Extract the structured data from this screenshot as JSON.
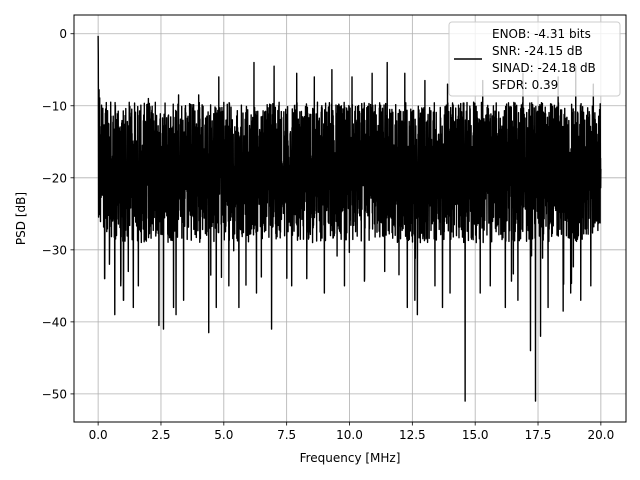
{
  "chart_data": {
    "type": "line",
    "title": "",
    "xlabel": "Frequency [MHz]",
    "ylabel": "PSD [dB]",
    "xlim": [
      -0.96,
      21.0
    ],
    "ylim": [
      -53.9,
      2.6
    ],
    "x_ticks": [
      0.0,
      2.5,
      5.0,
      7.5,
      10.0,
      12.5,
      15.0,
      17.5,
      20.0
    ],
    "x_tick_labels": [
      "0.0",
      "2.5",
      "5.0",
      "7.5",
      "10.0",
      "12.5",
      "15.0",
      "17.5",
      "20.0"
    ],
    "y_ticks": [
      0,
      -10,
      -20,
      -30,
      -40,
      -50
    ],
    "y_tick_labels": [
      "0",
      "−10",
      "−20",
      "−30",
      "−40",
      "−50"
    ],
    "grid": true,
    "legend": {
      "placement": "top-right",
      "entries": [
        "ENOB: -4.31 bits",
        "SNR: -24.15 dB",
        "SINAD: -24.18 dB",
        "SFDR: 0.39"
      ]
    },
    "series": [
      {
        "color": "#000000",
        "x_start": 0.0,
        "x_end": 20.0,
        "dc_peak": {
          "x": 0.0,
          "y": -0.3
        },
        "noise_band": {
          "upper_envelope": -9.5,
          "lower_typical": -27.0,
          "median": -18.0
        },
        "upper_spikes": [
          [
            0.5,
            -9.5
          ],
          [
            2.0,
            -9.0
          ],
          [
            3.2,
            -8.5
          ],
          [
            4.0,
            -8.5
          ],
          [
            4.8,
            -6.0
          ],
          [
            5.6,
            -6.0
          ],
          [
            6.2,
            -4.0
          ],
          [
            7.0,
            -4.5
          ],
          [
            7.9,
            -5.5
          ],
          [
            8.6,
            -6.0
          ],
          [
            9.3,
            -5.0
          ],
          [
            10.1,
            -6.0
          ],
          [
            10.9,
            -5.5
          ],
          [
            11.5,
            -4.0
          ],
          [
            12.2,
            -5.5
          ],
          [
            13.0,
            -6.5
          ],
          [
            13.9,
            -7.0
          ],
          [
            14.6,
            -5.0
          ],
          [
            15.3,
            -6.5
          ],
          [
            16.2,
            -6.0
          ],
          [
            16.9,
            -5.5
          ],
          [
            17.6,
            -6.5
          ],
          [
            18.3,
            -6.0
          ],
          [
            19.0,
            -4.5
          ],
          [
            19.7,
            -7.0
          ]
        ],
        "lower_spikes": [
          [
            0.26,
            -34
          ],
          [
            0.45,
            -32
          ],
          [
            0.66,
            -39
          ],
          [
            0.9,
            -35
          ],
          [
            1.01,
            -37
          ],
          [
            1.2,
            -33
          ],
          [
            1.4,
            -38
          ],
          [
            1.6,
            -35
          ],
          [
            2.42,
            -40.5
          ],
          [
            2.6,
            -41
          ],
          [
            3.0,
            -38
          ],
          [
            3.1,
            -39
          ],
          [
            3.4,
            -37
          ],
          [
            4.4,
            -41.5
          ],
          [
            4.7,
            -38
          ],
          [
            5.2,
            -35
          ],
          [
            5.6,
            -38
          ],
          [
            6.3,
            -36
          ],
          [
            6.9,
            -41
          ],
          [
            7.7,
            -35
          ],
          [
            8.3,
            -34
          ],
          [
            9.0,
            -36
          ],
          [
            9.8,
            -35
          ],
          [
            10.6,
            -34
          ],
          [
            11.4,
            -33
          ],
          [
            12.3,
            -38
          ],
          [
            12.6,
            -37
          ],
          [
            12.7,
            -39
          ],
          [
            13.4,
            -35
          ],
          [
            13.7,
            -38
          ],
          [
            14.0,
            -36
          ],
          [
            14.6,
            -51
          ],
          [
            15.2,
            -36
          ],
          [
            15.6,
            -35
          ],
          [
            16.2,
            -38
          ],
          [
            16.7,
            -37
          ],
          [
            17.2,
            -44
          ],
          [
            17.4,
            -51
          ],
          [
            17.6,
            -42
          ],
          [
            17.9,
            -38
          ],
          [
            18.5,
            -38.5
          ],
          [
            18.8,
            -36
          ],
          [
            19.2,
            -37
          ],
          [
            19.6,
            -35
          ]
        ]
      }
    ]
  }
}
